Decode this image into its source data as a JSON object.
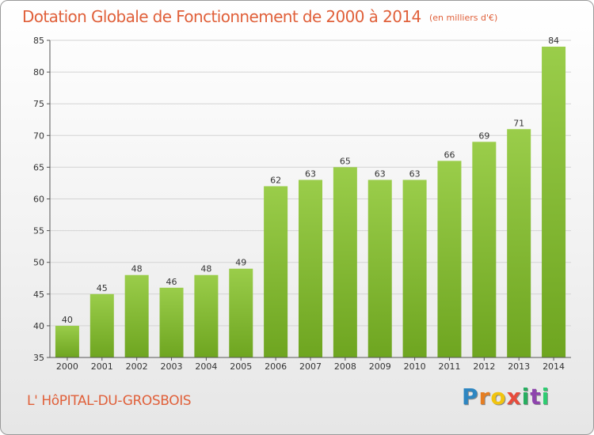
{
  "chart_data": {
    "type": "bar",
    "title": "Dotation Globale de Fonctionnement de 2000 à 2014",
    "unit_note": "(en milliers d'€)",
    "categories": [
      "2000",
      "2001",
      "2002",
      "2003",
      "2004",
      "2005",
      "2006",
      "2007",
      "2008",
      "2009",
      "2010",
      "2011",
      "2012",
      "2013",
      "2014"
    ],
    "values": [
      40,
      45,
      48,
      46,
      48,
      49,
      62,
      63,
      65,
      63,
      63,
      66,
      69,
      71,
      84
    ],
    "ylim": [
      35,
      85
    ],
    "yticks": [
      35,
      40,
      45,
      50,
      55,
      60,
      65,
      70,
      75,
      80,
      85
    ],
    "xlabel": "",
    "ylabel": "",
    "grid": true,
    "bar_color_top": "#9acd4a",
    "bar_color_bottom": "#6ea520"
  },
  "commune": "L' HôPITAL-DU-GROSBOIS",
  "logo": {
    "letters": [
      "P",
      "r",
      "o",
      "x",
      "i",
      "t",
      "i"
    ],
    "colors": [
      "#2e86c1",
      "#e67e22",
      "#f1c40f",
      "#e74c3c",
      "#27ae60",
      "#8e44ad",
      "#2ecc71"
    ]
  },
  "colors": {
    "accent": "#e0603a",
    "axis": "#555555",
    "grid": "#d4d4d4"
  }
}
